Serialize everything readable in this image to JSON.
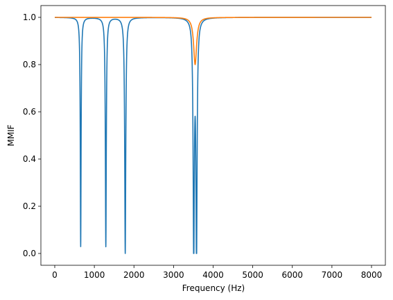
{
  "chart_data": {
    "type": "line",
    "title": "",
    "xlabel": "Frequency (Hz)",
    "ylabel": "MMIF",
    "xlim": [
      -350,
      8350
    ],
    "ylim": [
      -0.05,
      1.05
    ],
    "x_ticks": [
      0,
      1000,
      2000,
      3000,
      4000,
      5000,
      6000,
      7000,
      8000
    ],
    "y_ticks": [
      0.0,
      0.2,
      0.4,
      0.6,
      0.8,
      1.0
    ],
    "x_tick_labels": [
      "0",
      "1000",
      "2000",
      "3000",
      "4000",
      "5000",
      "6000",
      "7000",
      "8000"
    ],
    "y_tick_labels": [
      "0.0",
      "0.2",
      "0.4",
      "0.6",
      "0.8",
      "1.0"
    ],
    "grid": false,
    "legend": "none",
    "series": [
      {
        "color": "#1f77b4",
        "x_range": [
          0,
          8000
        ],
        "baseline": 1.0,
        "dips": [
          {
            "center": 655,
            "min": 0.03,
            "halfwidth": 12
          },
          {
            "center": 1290,
            "min": 0.03,
            "halfwidth": 14
          },
          {
            "center": 1780,
            "min": 0.0,
            "halfwidth": 16
          },
          {
            "center": 3510,
            "min": 0.0,
            "halfwidth": 18
          },
          {
            "center": 3580,
            "min": 0.0,
            "halfwidth": 18
          }
        ]
      },
      {
        "color": "#ff7f0e",
        "x_range": [
          0,
          8000
        ],
        "baseline": 1.0,
        "dips": [
          {
            "center": 3545,
            "min": 0.8,
            "halfwidth": 45
          }
        ]
      }
    ]
  }
}
